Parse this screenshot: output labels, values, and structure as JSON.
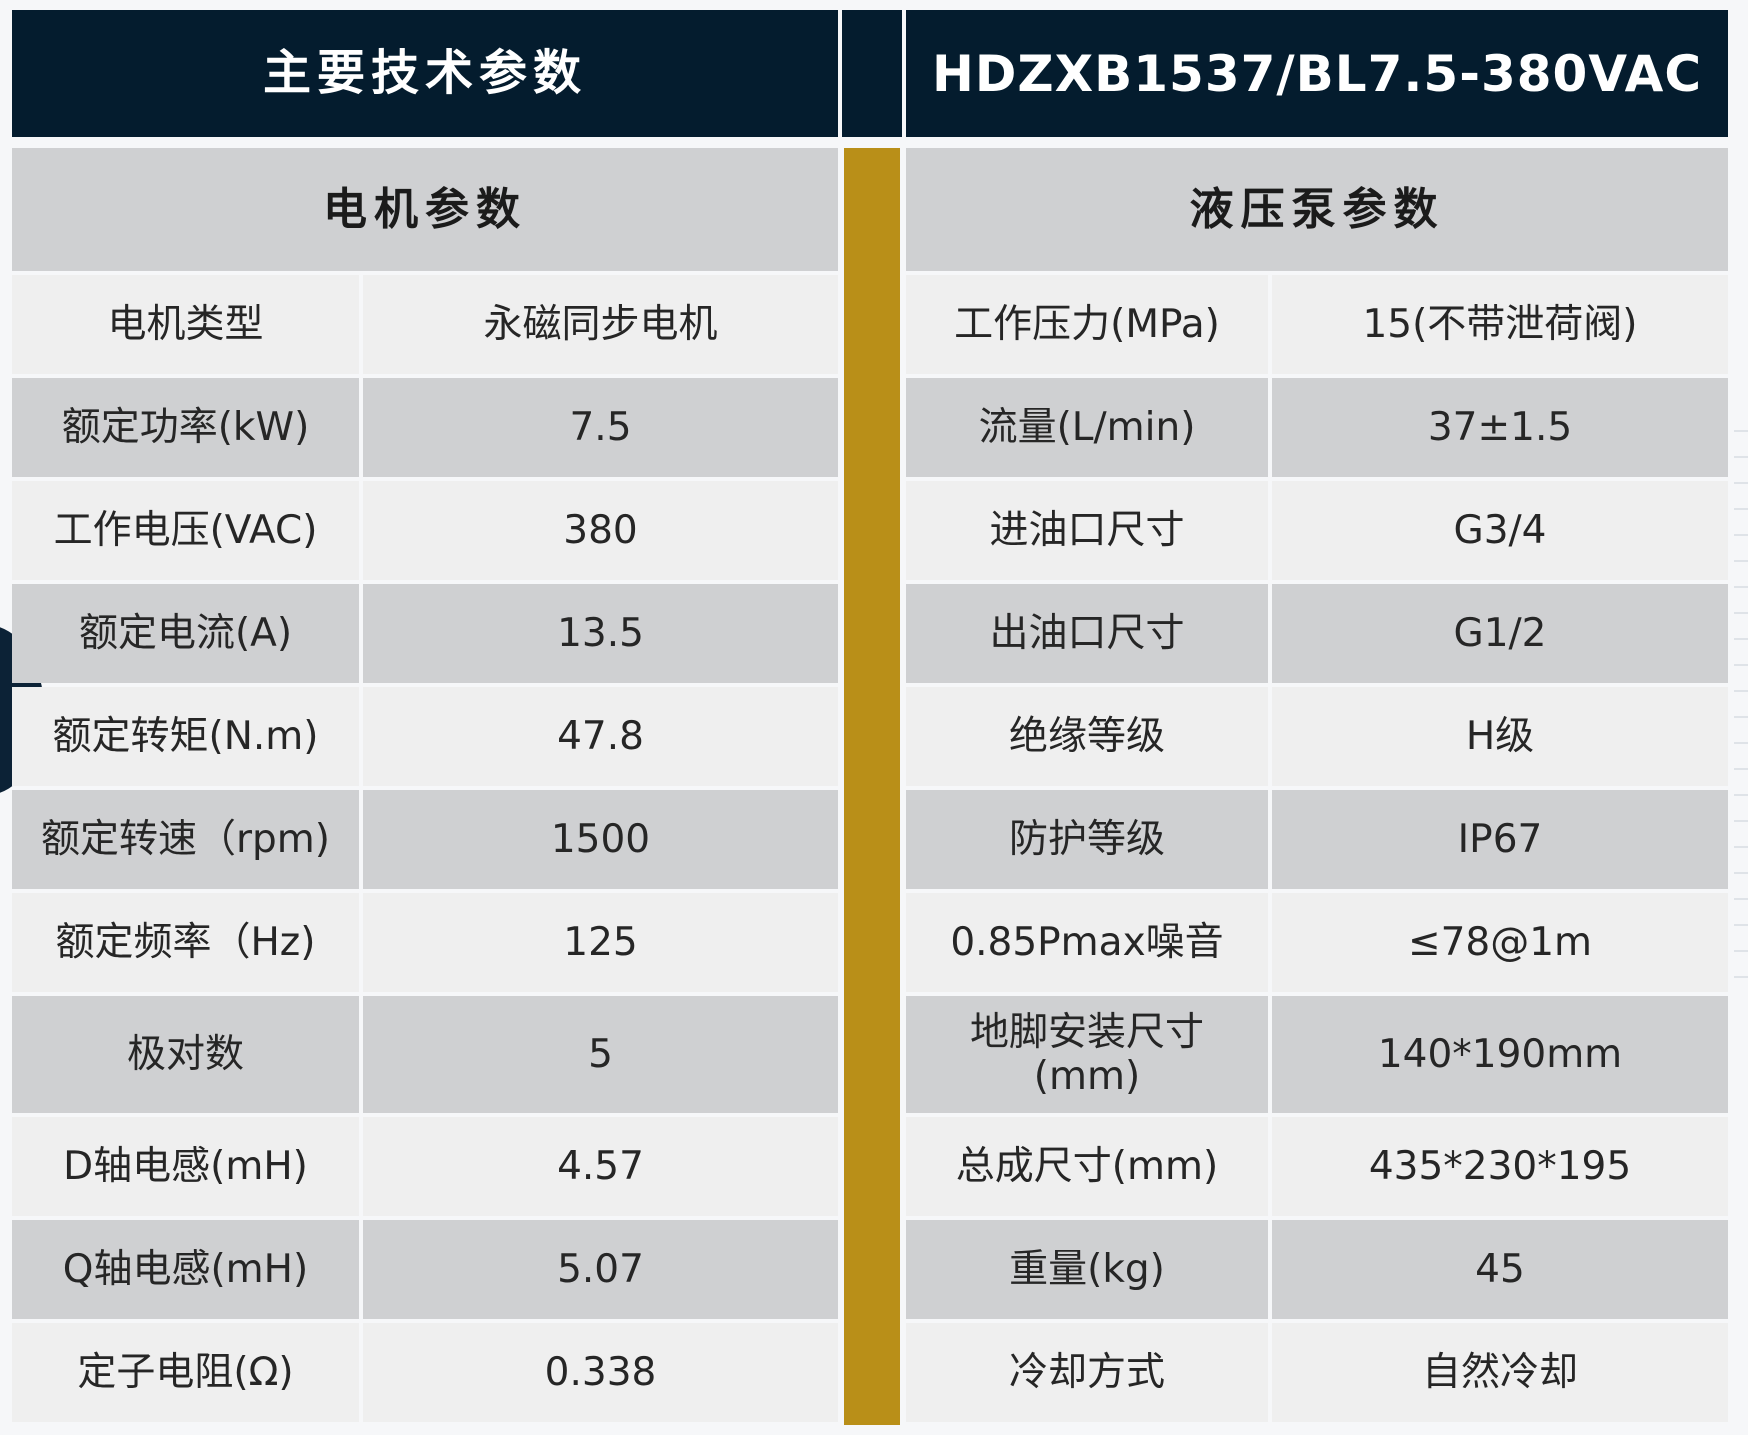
{
  "header": {
    "title": "主要技术参数",
    "model": "HDZXB1537/BL7.5-380VAC"
  },
  "motor": {
    "title": "电机参数",
    "rows": [
      {
        "label": "电机类型",
        "value": "永磁同步电机"
      },
      {
        "label": "额定功率(kW)",
        "value": "7.5"
      },
      {
        "label": "工作电压(VAC)",
        "value": "380"
      },
      {
        "label": "额定电流(A)",
        "value": "13.5"
      },
      {
        "label": "额定转矩(N.m)",
        "value": "47.8"
      },
      {
        "label": "额定转速（rpm)",
        "value": "1500"
      },
      {
        "label": "额定频率（Hz)",
        "value": "125"
      },
      {
        "label": "极对数",
        "value": "5"
      },
      {
        "label": "D轴电感(mH)",
        "value": "4.57"
      },
      {
        "label": "Q轴电感(mH)",
        "value": "5.07"
      },
      {
        "label": "定子电阻(Ω)",
        "value": "0.338"
      }
    ]
  },
  "pump": {
    "title": "液压泵参数",
    "rows": [
      {
        "label": "工作压力(MPa)",
        "value": "15(不带泄荷阀)"
      },
      {
        "label": "流量(L/min)",
        "value": "37±1.5"
      },
      {
        "label": "进油口尺寸",
        "value": "G3/4"
      },
      {
        "label": "出油口尺寸",
        "value": "G1/2"
      },
      {
        "label": "绝缘等级",
        "value": "H级"
      },
      {
        "label": "防护等级",
        "value": "IP67"
      },
      {
        "label": "0.85Pmax噪音",
        "value": "≤78@1m"
      },
      {
        "label": "地脚安装尺寸\n(mm)",
        "value": "140*190mm"
      },
      {
        "label": "总成尺寸(mm)",
        "value": "435*230*195"
      },
      {
        "label": "重量(kg)",
        "value": "45"
      },
      {
        "label": "冷却方式",
        "value": "自然冷却"
      }
    ]
  },
  "colors": {
    "header_bg": "#041c2e",
    "subheader_bg": "#cfd0d2",
    "row_light": "#efefef",
    "row_dark": "#cfd0d2",
    "divider_gold": "#b98f18"
  }
}
